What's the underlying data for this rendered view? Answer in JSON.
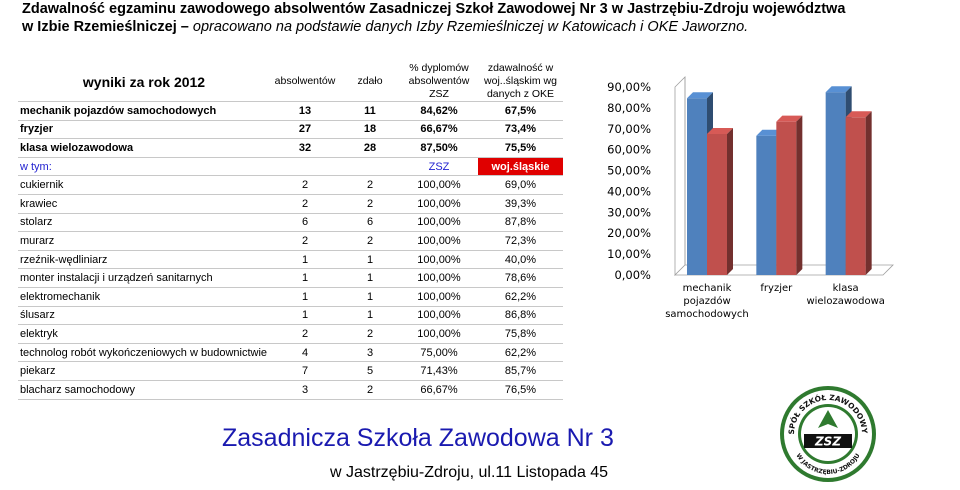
{
  "header": {
    "line1": "Zdawalność egzaminu zawodowego absolwentów Zasadniczej Szkoł Zawodowej Nr 3 w Jastrzębiu-Zdroju województwa",
    "line2_bold": "w Izbie Rzemieślniczej",
    "line2_dash": "–",
    "line2_italic": "opracowano na podstawie danych Izby Rzemieślniczej w Katowicach i OKE Jaworzno."
  },
  "table": {
    "title": "wyniki za rok 2012",
    "col_absolwentow": "absolwentów",
    "col_zdalo": "zdało",
    "col_dyplomow": "% dyplomów absolwentów ZSZ",
    "col_zdawalnosc": "zdawalność w woj..śląskim wg danych z OKE",
    "main_rows": [
      {
        "name": "mechanik pojazdów samochodowych",
        "abs": "13",
        "zdalo": "11",
        "pct": "84,62%",
        "woj": "67,5%"
      },
      {
        "name": "fryzjer",
        "abs": "27",
        "zdalo": "18",
        "pct": "66,67%",
        "woj": "73,4%"
      },
      {
        "name": "klasa wielozawodowa",
        "abs": "32",
        "zdalo": "28",
        "pct": "87,50%",
        "woj": "75,5%"
      }
    ],
    "subheader": {
      "label": "w tym:",
      "zsz": "ZSZ",
      "woj": "woj.śląskie"
    },
    "sub_rows": [
      {
        "name": "cukiernik",
        "abs": "2",
        "zdalo": "2",
        "pct": "100,00%",
        "woj": "69,0%"
      },
      {
        "name": "krawiec",
        "abs": "2",
        "zdalo": "2",
        "pct": "100,00%",
        "woj": "39,3%"
      },
      {
        "name": "stolarz",
        "abs": "6",
        "zdalo": "6",
        "pct": "100,00%",
        "woj": "87,8%"
      },
      {
        "name": "murarz",
        "abs": "2",
        "zdalo": "2",
        "pct": "100,00%",
        "woj": "72,3%"
      },
      {
        "name": "rzeźnik-wędliniarz",
        "abs": "1",
        "zdalo": "1",
        "pct": "100,00%",
        "woj": "40,0%"
      },
      {
        "name": "monter instalacji i urządzeń sanitarnych",
        "abs": "1",
        "zdalo": "1",
        "pct": "100,00%",
        "woj": "78,6%"
      },
      {
        "name": "elektromechanik",
        "abs": "1",
        "zdalo": "1",
        "pct": "100,00%",
        "woj": "62,2%"
      },
      {
        "name": "ślusarz",
        "abs": "1",
        "zdalo": "1",
        "pct": "100,00%",
        "woj": "86,8%"
      },
      {
        "name": "elektryk",
        "abs": "2",
        "zdalo": "2",
        "pct": "100,00%",
        "woj": "75,8%"
      },
      {
        "name": "technolog robót wykończeniowych w budownictwie",
        "abs": "4",
        "zdalo": "3",
        "pct": "75,00%",
        "woj": "62,2%"
      },
      {
        "name": "piekarz",
        "abs": "7",
        "zdalo": "5",
        "pct": "71,43%",
        "woj": "85,7%"
      },
      {
        "name": "blacharz samochodowy",
        "abs": "3",
        "zdalo": "2",
        "pct": "66,67%",
        "woj": "76,5%"
      }
    ]
  },
  "chart_data": {
    "type": "bar",
    "categories": [
      "mechanik pojazdów samochodowych",
      "fryzjer",
      "klasa wielozawodowa"
    ],
    "category_lines": [
      [
        "mechanik",
        "pojazdów",
        "samochodowych"
      ],
      [
        "fryzjer"
      ],
      [
        "klasa",
        "wielozawodowa"
      ]
    ],
    "series": [
      {
        "values": [
          84.62,
          66.67,
          87.5
        ],
        "color": "#4f81bd"
      },
      {
        "values": [
          67.5,
          73.4,
          75.5
        ],
        "color": "#c0504d"
      }
    ],
    "ylim": [
      0,
      90
    ],
    "yticks": [
      "0,00%",
      "10,00%",
      "20,00%",
      "30,00%",
      "40,00%",
      "50,00%",
      "60,00%",
      "70,00%",
      "80,00%",
      "90,00%"
    ],
    "style": "3d-columns",
    "grid": false,
    "legend": "none"
  },
  "footer": {
    "title": "Zasadnicza Szkoła Zawodowa Nr 3",
    "address": "w Jastrzębiu-Zdroju, ul.11 Listopada 45"
  },
  "logo": {
    "text_top": "ZESPÓŁ SZKÓŁ ZAWODOWYCH",
    "text_center": "ZSZ",
    "text_bottom": "W JASTRZĘBIU-ZDROJU",
    "colors": {
      "ring": "#2f7a2f",
      "inner": "#ffffff",
      "accent": "#111111"
    }
  }
}
